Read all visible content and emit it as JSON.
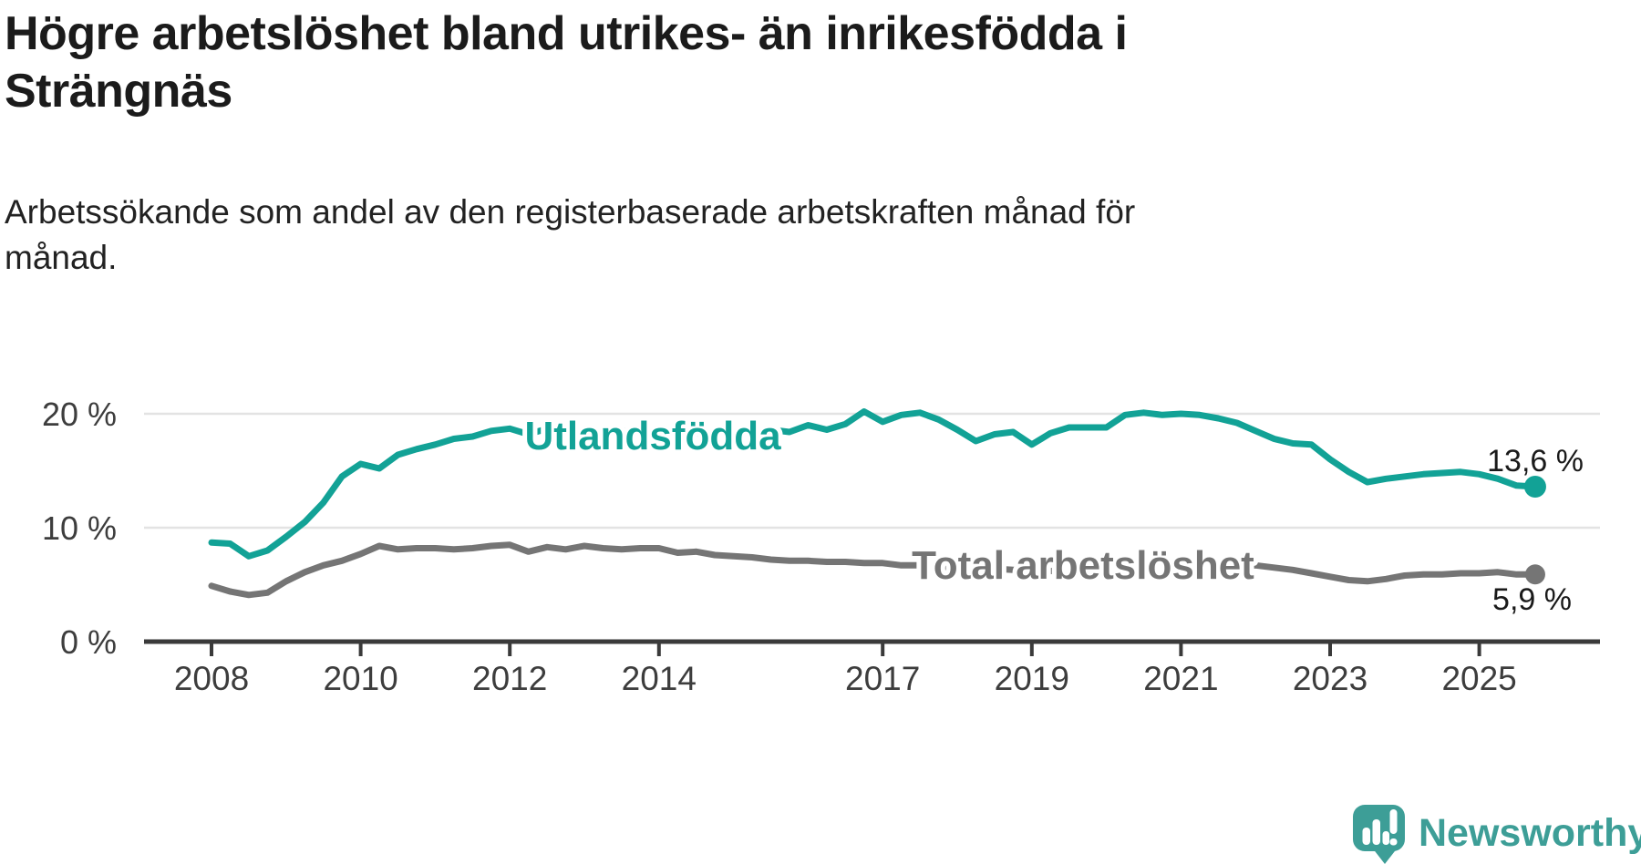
{
  "header": {
    "title_lines": [
      "Högre arbetslöshet bland utrikes- än inrikesfödda i",
      "Strängnäs"
    ],
    "subtitle": "Arbetssökande som andel av den registerbaserade arbetskraften månad för månad."
  },
  "chart_data": {
    "type": "line",
    "title": "Högre arbetslöshet bland utrikes- än inrikesfödda i Strängnäs",
    "subtitle": "Arbetssökande som andel av den registerbaserade arbetskraften månad för månad.",
    "xlabel": "",
    "ylabel": "",
    "grid": "horizontal",
    "legend_position": "inline-labels-on-lines",
    "xlim": [
      2007.1,
      2026.8
    ],
    "ylim": [
      0,
      22
    ],
    "x_label_years": [
      2008,
      2010,
      2012,
      2014,
      2017,
      2019,
      2021,
      2023,
      2025
    ],
    "y_ticks": [
      {
        "label": "20 %",
        "value": 20
      },
      {
        "label": "10 %",
        "value": 10
      },
      {
        "label": "0 %",
        "value": 0
      }
    ],
    "x": [
      2008,
      2008.25,
      2008.5,
      2008.75,
      2009,
      2009.25,
      2009.5,
      2009.75,
      2010,
      2010.25,
      2010.5,
      2010.75,
      2011,
      2011.25,
      2011.5,
      2011.75,
      2012,
      2012.25,
      2012.5,
      2012.75,
      2013,
      2013.25,
      2013.5,
      2013.75,
      2014,
      2014.25,
      2014.5,
      2014.75,
      2015,
      2015.25,
      2015.5,
      2015.75,
      2016,
      2016.25,
      2016.5,
      2016.75,
      2017,
      2017.25,
      2017.5,
      2017.75,
      2018,
      2018.25,
      2018.5,
      2018.75,
      2019,
      2019.25,
      2019.5,
      2019.75,
      2020,
      2020.25,
      2020.5,
      2020.75,
      2021,
      2021.25,
      2021.5,
      2021.75,
      2022,
      2022.25,
      2022.5,
      2022.75,
      2023,
      2023.25,
      2023.5,
      2023.75,
      2024,
      2024.25,
      2024.5,
      2024.75,
      2025,
      2025.25,
      2025.5,
      2025.75
    ],
    "series": [
      {
        "name": "Utlandsfödda",
        "color": "#12a296",
        "end_label": "13,6 %",
        "end_value": 13.6,
        "values": [
          8.7,
          8.6,
          7.5,
          8.0,
          9.2,
          10.5,
          12.2,
          14.5,
          15.6,
          15.2,
          16.4,
          16.9,
          17.3,
          17.8,
          18.0,
          18.5,
          18.7,
          18.2,
          18.7,
          18.4,
          18.5,
          18.3,
          18.5,
          18.3,
          18.4,
          18.1,
          18.3,
          18.0,
          18.2,
          17.9,
          18.6,
          18.4,
          19.0,
          18.6,
          19.1,
          20.2,
          19.3,
          19.9,
          20.1,
          19.5,
          18.6,
          17.6,
          18.2,
          18.4,
          17.3,
          18.3,
          18.8,
          18.8,
          18.8,
          19.9,
          20.1,
          19.9,
          20.0,
          19.9,
          19.6,
          19.2,
          18.5,
          17.8,
          17.4,
          17.3,
          16.0,
          14.9,
          14.0,
          14.3,
          14.5,
          14.7,
          14.8,
          14.9,
          14.7,
          14.3,
          13.7,
          13.6
        ]
      },
      {
        "name": "Total arbetslöshet",
        "color": "#757575",
        "end_label": "5,9 %",
        "end_value": 5.9,
        "values": [
          4.9,
          4.4,
          4.1,
          4.3,
          5.3,
          6.1,
          6.7,
          7.1,
          7.7,
          8.4,
          8.1,
          8.2,
          8.2,
          8.1,
          8.2,
          8.4,
          8.5,
          7.9,
          8.3,
          8.1,
          8.4,
          8.2,
          8.1,
          8.2,
          8.2,
          7.8,
          7.9,
          7.6,
          7.5,
          7.4,
          7.2,
          7.1,
          7.1,
          7.0,
          7.0,
          6.9,
          6.9,
          6.7,
          6.7,
          6.6,
          6.5,
          6.4,
          6.4,
          6.3,
          6.3,
          6.2,
          6.2,
          6.3,
          6.4,
          6.8,
          7.0,
          7.0,
          6.9,
          6.8,
          6.7,
          6.6,
          6.7,
          6.5,
          6.3,
          6.0,
          5.7,
          5.4,
          5.3,
          5.5,
          5.8,
          5.9,
          5.9,
          6.0,
          6.0,
          6.1,
          5.9,
          5.9
        ]
      }
    ]
  },
  "branding": {
    "logo_text": "Newsworthy",
    "logo_icon": "newsworthy-speech-bubble-bar-chart-icon",
    "brand_color": "#3d9e97"
  }
}
